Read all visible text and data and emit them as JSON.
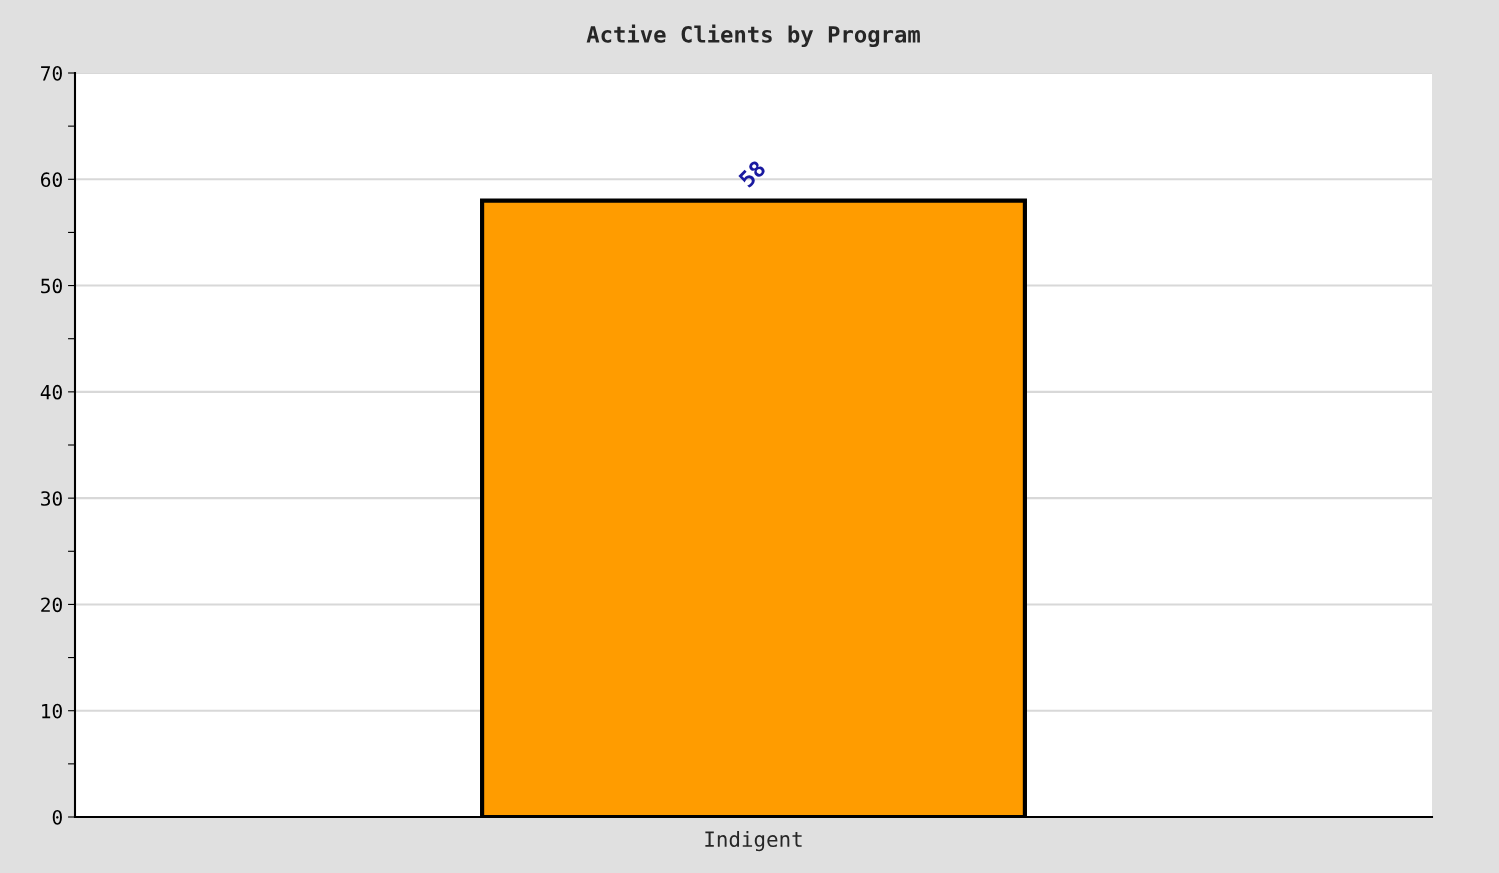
{
  "chart_data": {
    "type": "bar",
    "title": "Active Clients by Program",
    "categories": [
      "Indigent"
    ],
    "values": [
      58
    ],
    "color": "#ff9c00",
    "ylim": [
      0,
      70
    ],
    "yticks": [
      0,
      {
        "value": 5,
        "label": null
      },
      10,
      {
        "value": 15,
        "label": null
      },
      20,
      {
        "value": 25,
        "label": null
      },
      30,
      {
        "value": 35,
        "label": null
      },
      40,
      {
        "value": 45,
        "label": null
      },
      50,
      {
        "value": 55,
        "label": null
      },
      60,
      {
        "value": 65,
        "label": null
      },
      70
    ],
    "grid": "y",
    "data_labels": true
  }
}
